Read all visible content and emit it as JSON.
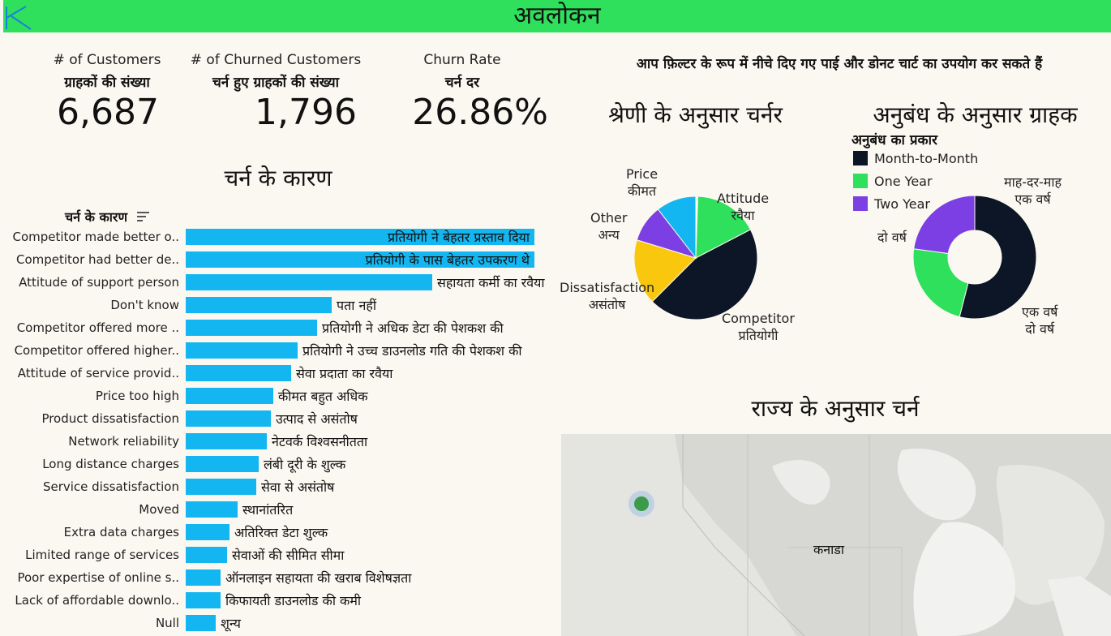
{
  "header": {
    "title": "अवलोकन",
    "logo": "tableau-logo-icon"
  },
  "kpis": [
    {
      "label_en": "# of Customers",
      "label_hi": "ग्राहकों की संख्या",
      "value": "6,687"
    },
    {
      "label_en": "# of Churned Customers",
      "label_hi": "चर्न हुए ग्राहकों की संख्या",
      "value": "1,796"
    },
    {
      "label_en": "Churn Rate",
      "label_hi": "चर्न दर",
      "value": "26.86%"
    }
  ],
  "filter_note": "आप फ़िल्टर के रूप में नीचे दिए गए पाई और डोनट चार्ट का उपयोग कर सकते हैं",
  "reasons": {
    "section_title": "चर्न के कारण",
    "column_header": "चर्न के कारण",
    "sort_icon": "sort-icon",
    "bar_color": "#13b6f0"
  },
  "category_pie": {
    "title": "श्रेणी के अनुसार चर्नर"
  },
  "contract_donut": {
    "title": "अनुबंध के अनुसार ग्राहक",
    "legend_title": "अनुबंध का प्रकार"
  },
  "state_map": {
    "title": "राज्य के अनुसार चर्न",
    "region_label": "कनाडा",
    "marker_color": "#3c9b48"
  },
  "chart_data": [
    {
      "type": "bar",
      "orientation": "horizontal",
      "title": "चर्न के कारण",
      "categories": [
        "Competitor made better o..",
        "Competitor had better de..",
        "Attitude of support person",
        "Don't know",
        "Competitor offered more ..",
        "Competitor offered higher..",
        "Attitude of service provid..",
        "Price too high",
        "Product dissatisfaction",
        "Network reliability",
        "Long distance charges",
        "Service dissatisfaction",
        "Moved",
        "Extra data charges",
        "Limited range of services",
        "Poor expertise of online s..",
        "Lack of affordable downlo..",
        "Null"
      ],
      "labels": [
        "प्रतियोगी ने बेहतर प्रस्ताव दिया",
        "प्रतियोगी के पास बेहतर उपकरण थे",
        "सहायता कर्मी का रवैया",
        "पता नहीं",
        "प्रतियोगी ने अधिक डेटा की पेशकश की",
        "प्रतियोगी ने उच्च डाउनलोड गति की पेशकश की",
        "सेवा प्रदाता का रवैया",
        "कीमत बहुत अधिक",
        "उत्पाद से असंतोष",
        "नेटवर्क विश्वसनीतता",
        "लंबी दूरी के शुल्क",
        "सेवा से असंतोष",
        "स्थानांतरित",
        "अतिरिक्त डेटा शुल्क",
        "सेवाओं की सीमित सीमा",
        "ऑनलाइन सहायता की खराब विशेषज्ञता",
        "किफायती डाउनलोड की कमी",
        "शून्य"
      ],
      "values": [
        311,
        311,
        220,
        130,
        117,
        100,
        94,
        78,
        76,
        72,
        65,
        63,
        46,
        39,
        37,
        31,
        31,
        27
      ]
    },
    {
      "type": "pie",
      "title": "श्रेणी के अनुसार चर्नर",
      "series": [
        {
          "name": "Competitor",
          "label_hi": "प्रतियोगी",
          "value": 841,
          "color": "#0c1626"
        },
        {
          "name": "Dissatisfaction",
          "label_hi": "असंतोष",
          "value": 321,
          "color": "#f9c80e"
        },
        {
          "name": "Other",
          "label_hi": "अन्य",
          "value": 182,
          "color": "#7b3fe4"
        },
        {
          "name": "Price",
          "label_hi": "कीमत",
          "value": 196,
          "color": "#13b6f0"
        },
        {
          "name": "Attitude",
          "label_hi": "रवैया",
          "value": 314,
          "color": "#2ee05c"
        },
        {
          "name": "",
          "label_hi": "",
          "value": 10,
          "color": "#ffffff"
        }
      ]
    },
    {
      "type": "pie",
      "subtype": "donut",
      "title": "अनुबंध के अनुसार ग्राहक",
      "legend_title": "अनुबंध का प्रकार",
      "series": [
        {
          "name": "Month-to-Month",
          "label_hi": "माह-दर-माह",
          "value": 3610,
          "color": "#0c1626"
        },
        {
          "name": "One Year",
          "label_hi": "एक वर्ष",
          "value": 1550,
          "color": "#2ee05c"
        },
        {
          "name": "Two Year",
          "label_hi": "दो वर्ष",
          "value": 1527,
          "color": "#7b3fe4"
        }
      ],
      "legend_position": "top-left"
    }
  ]
}
